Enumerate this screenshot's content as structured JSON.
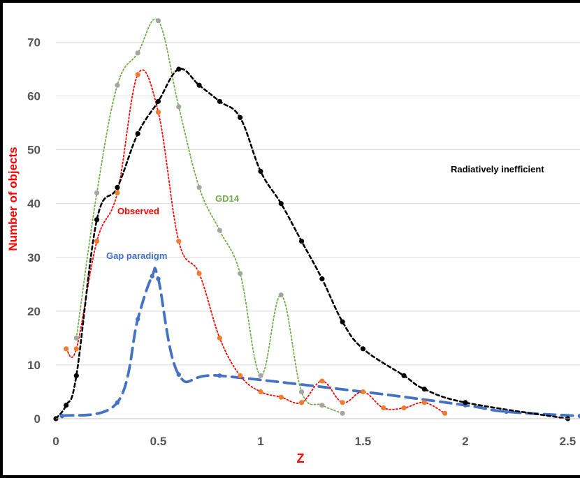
{
  "chart_data": {
    "type": "line",
    "xlabel": "Z",
    "ylabel": "Number of objects",
    "xlim": [
      0,
      2.56
    ],
    "ylim": [
      0,
      75
    ],
    "x_ticks": [
      "0",
      "0.5",
      "1",
      "1.5",
      "2",
      "2.5"
    ],
    "y_ticks": [
      "0",
      "10",
      "20",
      "30",
      "40",
      "50",
      "60",
      "70"
    ],
    "grid": "horizontal",
    "colors": {
      "radiatively_inefficient": "#000000",
      "gd14_line": "#70ad47",
      "gd14_marker": "#a5a5a5",
      "observed_line": "#ff0000",
      "observed_marker": "#ed7d31",
      "gap_paradigm": "#4472c4",
      "axis_title": "#ff0000"
    },
    "series": [
      {
        "name": "Radiatively inefficient",
        "x": [
          0.0,
          0.05,
          0.1,
          0.2,
          0.3,
          0.4,
          0.5,
          0.6,
          0.7,
          0.8,
          0.9,
          1.0,
          1.1,
          1.2,
          1.3,
          1.4,
          1.5,
          1.7,
          1.8,
          2.0,
          2.5
        ],
        "y": [
          0,
          2.5,
          8,
          37,
          43,
          53,
          59,
          65,
          62,
          59,
          56,
          46,
          40,
          33,
          26,
          18,
          13,
          8,
          5.5,
          3,
          0
        ]
      },
      {
        "name": "GD14",
        "x": [
          0.1,
          0.2,
          0.3,
          0.4,
          0.5,
          0.6,
          0.7,
          0.8,
          0.9,
          1.0,
          1.1,
          1.2,
          1.3,
          1.4
        ],
        "y": [
          15,
          42,
          62,
          68,
          74,
          58,
          43,
          35,
          27,
          8,
          23,
          5,
          2.5,
          1
        ]
      },
      {
        "name": "Observed",
        "x": [
          0.05,
          0.1,
          0.2,
          0.3,
          0.4,
          0.5,
          0.6,
          0.7,
          0.8,
          0.9,
          1.0,
          1.1,
          1.2,
          1.3,
          1.4,
          1.5,
          1.6,
          1.7,
          1.8,
          1.9
        ],
        "y": [
          13,
          13,
          33,
          42,
          64,
          57,
          33,
          27,
          15,
          8,
          5,
          4,
          3,
          7,
          3,
          5,
          2,
          2,
          3,
          1
        ]
      },
      {
        "name": "Gap paradigm",
        "x": [
          0.03,
          0.3,
          0.4,
          0.47,
          0.5,
          0.6,
          0.8,
          1.5,
          2.0,
          2.2,
          2.56
        ],
        "y": [
          0.5,
          3,
          18.5,
          26.5,
          26,
          8.2,
          8,
          5,
          2.5,
          1.3,
          0.5
        ]
      }
    ]
  }
}
